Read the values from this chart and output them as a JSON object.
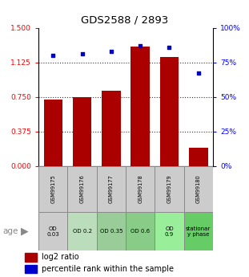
{
  "title": "GDS2588 / 2893",
  "samples": [
    "GSM99175",
    "GSM99176",
    "GSM99177",
    "GSM99178",
    "GSM99179",
    "GSM99180"
  ],
  "log2_ratio": [
    0.72,
    0.75,
    0.82,
    1.3,
    1.18,
    0.2
  ],
  "percentile_rank": [
    80,
    81,
    83,
    87,
    86,
    67
  ],
  "bar_color": "#aa0000",
  "dot_color": "#0000cc",
  "yticks_left": [
    0,
    0.375,
    0.75,
    1.125,
    1.5
  ],
  "yticks_right": [
    0,
    25,
    50,
    75,
    100
  ],
  "ylim_left": [
    0,
    1.5
  ],
  "ylim_right": [
    0,
    100
  ],
  "sample_labels": [
    "OD\n0.03",
    "OD 0.2",
    "OD 0.35",
    "OD 0.6",
    "OD\n0.9",
    "stationar\ny phase"
  ],
  "sample_colors": [
    "#cccccc",
    "#bbddbb",
    "#99cc99",
    "#88cc88",
    "#99ee99",
    "#66cc66"
  ],
  "age_label": "age",
  "legend_bar_label": "log2 ratio",
  "legend_dot_label": "percentile rank within the sample",
  "hline_color": "#333333",
  "hlines": [
    0.375,
    0.75,
    1.125
  ],
  "left_tick_color": "red",
  "right_tick_color": "blue",
  "spine_color": "black"
}
